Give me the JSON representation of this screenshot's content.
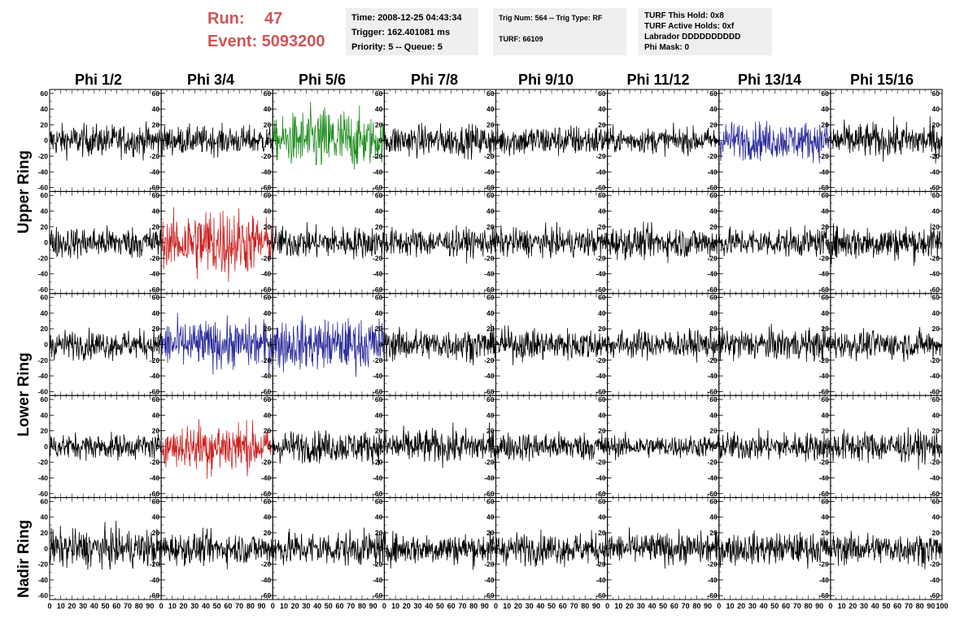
{
  "header": {
    "run_label": "Run:",
    "run_value": "47",
    "event_label": "Event:",
    "event_value": "5093200"
  },
  "info1": {
    "time": "Time: 2008-12-25 04:43:34",
    "trigger": "Trigger: 162.401081 ms",
    "priority": "Priority: 5 -- Queue: 5"
  },
  "info2": {
    "trig": "Trig Num: 564 -- Trig Type: RF",
    "turf": "TURF: 66109"
  },
  "info3": {
    "hold": "TURF This Hold: 0x8",
    "active": "TURF Active Holds: 0xf",
    "labrador": "Labrador DDDDDDDDDD",
    "phimask": "Phi Mask: 0"
  },
  "columns": [
    "Phi 1/2",
    "Phi 3/4",
    "Phi 5/6",
    "Phi 7/8",
    "Phi 9/10",
    "Phi 11/12",
    "Phi 13/14",
    "Phi 15/16"
  ],
  "rings": [
    "Upper Ring",
    "Lower Ring",
    "Nadir Ring"
  ],
  "chart_data": {
    "type": "line",
    "layout": "grid of 5 rows x 8 columns of waveform panels",
    "xlim": [
      0,
      100
    ],
    "ylim": [
      -65,
      65
    ],
    "x_ticks": [
      0,
      10,
      20,
      30,
      40,
      50,
      60,
      70,
      80,
      90,
      100
    ],
    "y_ticks": [
      -60,
      -40,
      -20,
      0,
      20,
      40,
      60
    ],
    "trace_colors": {
      "normal": "#000000",
      "green": "#1e8c1e",
      "red": "#cc2222",
      "blue": "#2a2a9a"
    },
    "panels": [
      [
        {
          "color": "normal",
          "amp": 10
        },
        {
          "color": "normal",
          "amp": 9
        },
        {
          "color": "green",
          "amp": 18
        },
        {
          "color": "normal",
          "amp": 10
        },
        {
          "color": "normal",
          "amp": 10
        },
        {
          "color": "normal",
          "amp": 8
        },
        {
          "color": "blue",
          "amp": 12
        },
        {
          "color": "normal",
          "amp": 11
        }
      ],
      [
        {
          "color": "normal",
          "amp": 10
        },
        {
          "color": "red",
          "amp": 20
        },
        {
          "color": "normal",
          "amp": 10
        },
        {
          "color": "normal",
          "amp": 9
        },
        {
          "color": "normal",
          "amp": 9
        },
        {
          "color": "normal",
          "amp": 10
        },
        {
          "color": "normal",
          "amp": 9
        },
        {
          "color": "normal",
          "amp": 11
        }
      ],
      [
        {
          "color": "normal",
          "amp": 9
        },
        {
          "color": "blue",
          "amp": 15
        },
        {
          "color": "blue",
          "amp": 16
        },
        {
          "color": "normal",
          "amp": 10
        },
        {
          "color": "normal",
          "amp": 10
        },
        {
          "color": "normal",
          "amp": 9
        },
        {
          "color": "normal",
          "amp": 10
        },
        {
          "color": "normal",
          "amp": 9
        }
      ],
      [
        {
          "color": "normal",
          "amp": 8
        },
        {
          "color": "red",
          "amp": 15
        },
        {
          "color": "normal",
          "amp": 10
        },
        {
          "color": "normal",
          "amp": 11
        },
        {
          "color": "normal",
          "amp": 9
        },
        {
          "color": "normal",
          "amp": 7
        },
        {
          "color": "normal",
          "amp": 9
        },
        {
          "color": "normal",
          "amp": 10
        }
      ],
      [
        {
          "color": "normal",
          "amp": 12
        },
        {
          "color": "normal",
          "amp": 10
        },
        {
          "color": "normal",
          "amp": 11
        },
        {
          "color": "normal",
          "amp": 10
        },
        {
          "color": "normal",
          "amp": 10
        },
        {
          "color": "normal",
          "amp": 10
        },
        {
          "color": "normal",
          "amp": 10
        },
        {
          "color": "normal",
          "amp": 10
        }
      ]
    ]
  }
}
